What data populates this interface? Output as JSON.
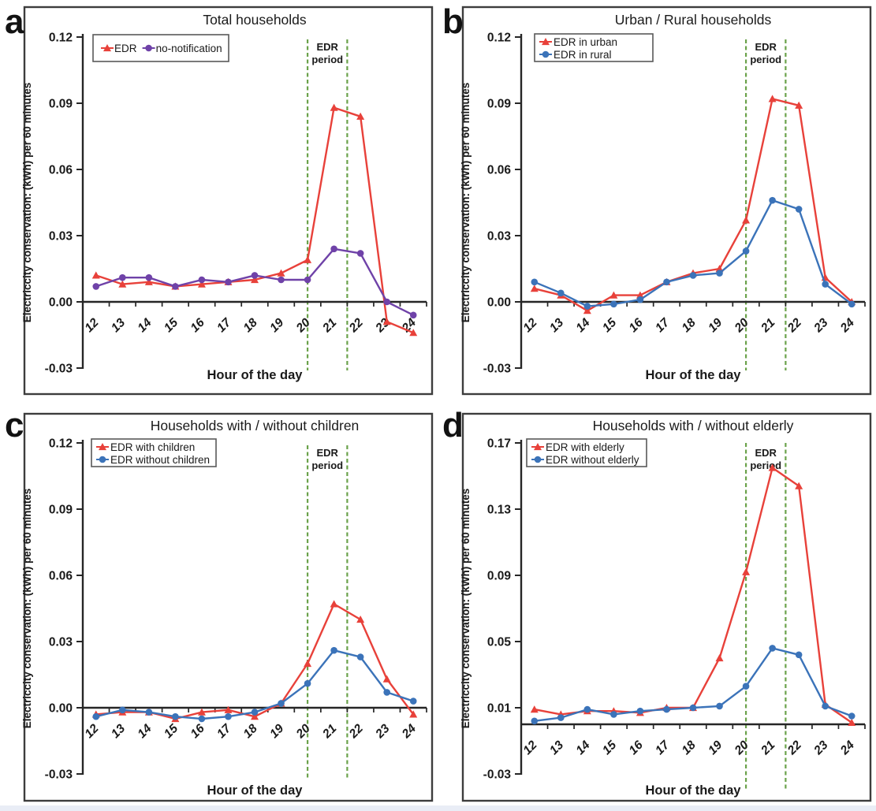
{
  "figure": {
    "background": "#ffffff",
    "bottom_strip_color": "#e9edf6",
    "axis_color": "#262626",
    "box_border_color": "#3d3d3d",
    "legend_border_color": "#595959",
    "dashed_line_color": "#6ba24b",
    "annotation_text_color": "#1a1a1a"
  },
  "chart_data": [
    {
      "type": "line",
      "panel_letter": "a",
      "title": "Total households",
      "xlabel": "Hour of the day",
      "ylabel": "Electriccity conservation: (kWh) per 60 minutes",
      "x_categories": [
        "12",
        "13",
        "14",
        "15",
        "16",
        "17",
        "18",
        "19",
        "20",
        "21",
        "22",
        "23",
        "24"
      ],
      "y_tick_labels": [
        "0.12",
        "0.09",
        "0.06",
        "0.03",
        "0.00",
        "-0.03"
      ],
      "y_ticks": [
        0.12,
        0.09,
        0.06,
        0.03,
        0.0,
        -0.03
      ],
      "ylim": [
        -0.03,
        0.12
      ],
      "grid": false,
      "legend_position": "top-left",
      "legend_layout": "row",
      "annotation": {
        "lines": [
          "EDR",
          "period"
        ],
        "dashed_x_index": [
          8,
          9.5
        ]
      },
      "series": [
        {
          "name": "EDR",
          "color": "#e8413a",
          "marker": "triangle",
          "values": [
            0.012,
            0.008,
            0.009,
            0.007,
            0.008,
            0.009,
            0.01,
            0.013,
            0.019,
            0.088,
            0.084,
            -0.009,
            -0.014
          ]
        },
        {
          "name": "no-notification",
          "color": "#6f42a8",
          "marker": "circle",
          "values": [
            0.007,
            0.011,
            0.011,
            0.007,
            0.01,
            0.009,
            0.012,
            0.01,
            0.01,
            0.024,
            0.022,
            0.0,
            -0.006
          ]
        }
      ]
    },
    {
      "type": "line",
      "panel_letter": "b",
      "title": "Urban / Rural households",
      "xlabel": "Hour of the day",
      "ylabel": "Electriccity conservation: (kWh) per 60 minutes",
      "x_categories": [
        "12",
        "13",
        "14",
        "15",
        "16",
        "17",
        "18",
        "19",
        "20",
        "21",
        "22",
        "23",
        "24"
      ],
      "y_tick_labels": [
        "0.12",
        "0.09",
        "0.06",
        "0.03",
        "0.00",
        "-0.03"
      ],
      "y_ticks": [
        0.12,
        0.09,
        0.06,
        0.03,
        0.0,
        -0.03
      ],
      "ylim": [
        -0.03,
        0.12
      ],
      "grid": false,
      "legend_position": "top-left",
      "legend_layout": "column",
      "annotation": {
        "lines": [
          "EDR",
          "period"
        ],
        "dashed_x_index": [
          8,
          9.5
        ]
      },
      "series": [
        {
          "name": "EDR in urban",
          "color": "#e8413a",
          "marker": "triangle",
          "values": [
            0.006,
            0.003,
            -0.004,
            0.003,
            0.003,
            0.009,
            0.013,
            0.015,
            0.037,
            0.092,
            0.089,
            0.011,
            0.0
          ]
        },
        {
          "name": "EDR in rural",
          "color": "#3b73b9",
          "marker": "circle",
          "values": [
            0.009,
            0.004,
            -0.002,
            -0.001,
            0.001,
            0.009,
            0.012,
            0.013,
            0.023,
            0.046,
            0.042,
            0.008,
            -0.001
          ]
        }
      ]
    },
    {
      "type": "line",
      "panel_letter": "c",
      "title": "Households with / without children",
      "xlabel": "Hour of the day",
      "ylabel": "Electriccity conservation: (kWh) per 60 minutes",
      "x_categories": [
        "12",
        "13",
        "14",
        "15",
        "16",
        "17",
        "18",
        "19",
        "20",
        "21",
        "22",
        "23",
        "24"
      ],
      "y_tick_labels": [
        "0.12",
        "0.09",
        "0.06",
        "0.03",
        "0.00",
        "-0.03"
      ],
      "y_ticks": [
        0.12,
        0.09,
        0.06,
        0.03,
        0.0,
        -0.03
      ],
      "ylim": [
        -0.03,
        0.12
      ],
      "grid": false,
      "legend_position": "top-left",
      "legend_layout": "column",
      "annotation": {
        "lines": [
          "EDR",
          "period"
        ],
        "dashed_x_index": [
          8,
          9.5
        ]
      },
      "series": [
        {
          "name": "EDR with children",
          "color": "#e8413a",
          "marker": "triangle",
          "values": [
            -0.003,
            -0.002,
            -0.002,
            -0.005,
            -0.002,
            -0.001,
            -0.004,
            0.002,
            0.02,
            0.047,
            0.04,
            0.013,
            -0.003
          ]
        },
        {
          "name": "EDR without children",
          "color": "#3b73b9",
          "marker": "circle",
          "values": [
            -0.004,
            -0.001,
            -0.002,
            -0.004,
            -0.005,
            -0.004,
            -0.002,
            0.002,
            0.011,
            0.026,
            0.023,
            0.007,
            0.003
          ]
        }
      ]
    },
    {
      "type": "line",
      "panel_letter": "d",
      "title": "Households with / without elderly",
      "xlabel": "Hour of the day",
      "ylabel": "Electriccity conservation: (kWh) per 60 minutes",
      "x_categories": [
        "12",
        "13",
        "14",
        "15",
        "16",
        "17",
        "18",
        "19",
        "20",
        "21",
        "22",
        "23",
        "24"
      ],
      "y_tick_labels": [
        "0.17",
        "0.13",
        "0.09",
        "0.05",
        "0.01",
        "-0.03"
      ],
      "y_ticks": [
        0.17,
        0.13,
        0.09,
        0.05,
        0.01,
        -0.03
      ],
      "ylim": [
        -0.03,
        0.17
      ],
      "grid": false,
      "legend_position": "top-left",
      "legend_layout": "column",
      "annotation": {
        "lines": [
          "EDR",
          "period"
        ],
        "dashed_x_index": [
          8,
          9.5
        ]
      },
      "series": [
        {
          "name": "EDR with elderly",
          "color": "#e8413a",
          "marker": "triangle",
          "values": [
            0.009,
            0.006,
            0.008,
            0.008,
            0.007,
            0.01,
            0.01,
            0.04,
            0.092,
            0.155,
            0.144,
            0.012,
            0.001
          ]
        },
        {
          "name": "EDR without elderly",
          "color": "#3b73b9",
          "marker": "circle",
          "values": [
            0.002,
            0.004,
            0.009,
            0.006,
            0.008,
            0.009,
            0.01,
            0.011,
            0.023,
            0.046,
            0.042,
            0.011,
            0.005
          ]
        }
      ]
    }
  ]
}
